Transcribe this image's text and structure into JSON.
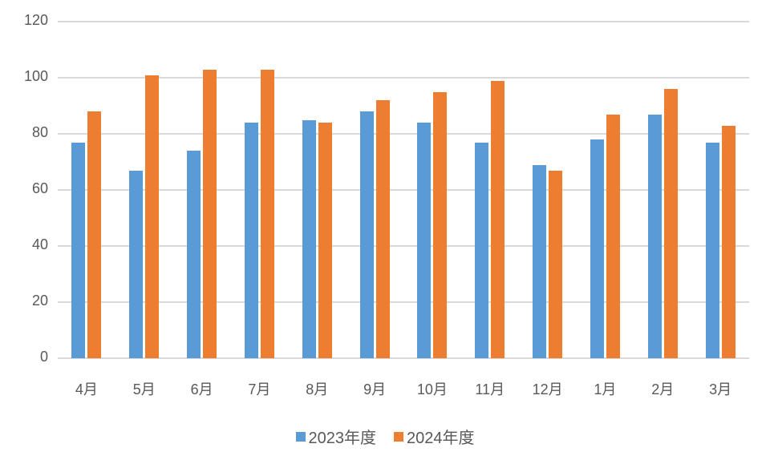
{
  "chart_data": {
    "type": "bar",
    "title": "",
    "xlabel": "",
    "ylabel": "",
    "ylim": [
      0,
      120
    ],
    "yticks": [
      0,
      20,
      40,
      60,
      80,
      100,
      120
    ],
    "grid": true,
    "legend_position": "bottom",
    "categories": [
      "4月",
      "5月",
      "6月",
      "7月",
      "8月",
      "9月",
      "10月",
      "11月",
      "12月",
      "1月",
      "2月",
      "3月"
    ],
    "series": [
      {
        "name": "2023年度",
        "color": "#5b9bd5",
        "values": [
          77,
          67,
          74,
          84,
          85,
          88,
          84,
          77,
          69,
          78,
          87,
          77
        ]
      },
      {
        "name": "2024年度",
        "color": "#ed7d31",
        "values": [
          88,
          101,
          103,
          103,
          84,
          92,
          95,
          99,
          67,
          87,
          96,
          83
        ]
      }
    ]
  },
  "legend": {
    "items": [
      {
        "label": "2023年度",
        "color": "#5b9bd5"
      },
      {
        "label": "2024年度",
        "color": "#ed7d31"
      }
    ]
  }
}
